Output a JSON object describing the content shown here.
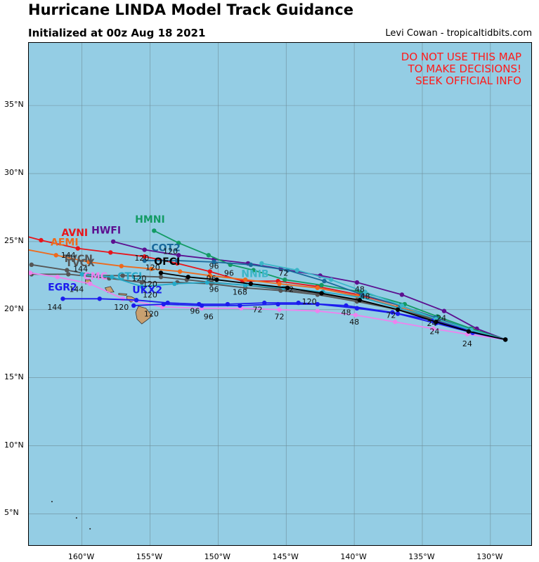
{
  "header": {
    "title": "Hurricane LINDA Model Track Guidance",
    "subtitle": "Initialized at 00z Aug 18 2021",
    "credit": "Levi Cowan - tropicaltidbits.com"
  },
  "warning": [
    "DO NOT USE THIS MAP",
    "TO MAKE DECISIONS!",
    "SEEK OFFICIAL INFO"
  ],
  "colors": {
    "ocean": "#94cde4",
    "land": "#c8a070",
    "grid": "#6f8f9a",
    "warning": "#ff1a1a"
  },
  "axes": {
    "lon_range": [
      -163.9,
      -127.0
    ],
    "lat_range": [
      2.7,
      39.6
    ],
    "x_ticks": [
      {
        "lon": -160,
        "label": "160°W"
      },
      {
        "lon": -155,
        "label": "155°W"
      },
      {
        "lon": -150,
        "label": "150°W"
      },
      {
        "lon": -145,
        "label": "145°W"
      },
      {
        "lon": -140,
        "label": "140°W"
      },
      {
        "lon": -135,
        "label": "135°W"
      },
      {
        "lon": -130,
        "label": "130°W"
      }
    ],
    "y_ticks": [
      {
        "lat": 5,
        "label": "5°N"
      },
      {
        "lat": 10,
        "label": "10°N"
      },
      {
        "lat": 15,
        "label": "15°N"
      },
      {
        "lat": 20,
        "label": "20°N"
      },
      {
        "lat": 25,
        "label": "25°N"
      },
      {
        "lat": 30,
        "label": "30°N"
      },
      {
        "lat": 35,
        "label": "35°N"
      }
    ]
  },
  "chart_data": {
    "type": "line",
    "models": [
      {
        "name": "AVNI",
        "color": "#e8141a",
        "label_at": [
          -161.5,
          25.4
        ],
        "points": [
          [
            -128.9,
            17.8
          ],
          [
            -131.3,
            18.5
          ],
          [
            -134.0,
            19.4
          ],
          [
            -136.6,
            20.3
          ],
          [
            -139.7,
            21.1
          ],
          [
            -142.7,
            21.7
          ],
          [
            -145.6,
            22.1
          ],
          [
            -148.2,
            22.1
          ],
          [
            -150.6,
            22.8
          ],
          [
            -153.0,
            23.4
          ],
          [
            -155.4,
            23.9
          ],
          [
            -157.9,
            24.2
          ],
          [
            -160.3,
            24.5
          ],
          [
            -163.0,
            25.1
          ],
          [
            -164.5,
            25.5
          ]
        ]
      },
      {
        "name": "AEMI",
        "color": "#ee6a1c",
        "label_at": [
          -162.3,
          24.7
        ],
        "points": [
          [
            -128.9,
            17.8
          ],
          [
            -131.4,
            18.5
          ],
          [
            -134.0,
            19.4
          ],
          [
            -136.8,
            20.2
          ],
          [
            -139.8,
            21.0
          ],
          [
            -142.7,
            21.6
          ],
          [
            -145.5,
            21.9
          ],
          [
            -148.0,
            22.2
          ],
          [
            -150.6,
            22.5
          ],
          [
            -152.8,
            22.8
          ],
          [
            -154.9,
            23.0
          ],
          [
            -157.1,
            23.2
          ],
          [
            -159.5,
            23.5
          ],
          [
            -161.9,
            24.0
          ],
          [
            -164.5,
            24.5
          ]
        ]
      },
      {
        "name": "TVCX",
        "color": "#555555",
        "label_at": [
          -161.2,
          23.2
        ],
        "points": [
          [
            -128.9,
            17.8
          ],
          [
            -131.4,
            18.4
          ],
          [
            -134.0,
            19.3
          ],
          [
            -136.8,
            20.0
          ],
          [
            -139.8,
            20.7
          ],
          [
            -142.7,
            21.2
          ],
          [
            -145.4,
            21.5
          ],
          [
            -148.0,
            21.8
          ],
          [
            -150.5,
            22.0
          ],
          [
            -152.3,
            22.2
          ],
          [
            -154.2,
            22.4
          ],
          [
            -157.0,
            22.5
          ],
          [
            -158.9,
            22.5
          ],
          [
            -161.1,
            22.9
          ],
          [
            -163.7,
            23.3
          ]
        ]
      },
      {
        "name": "TVCN",
        "color": "#555555",
        "label_at": [
          -161.4,
          23.5
        ],
        "points": [
          [
            -128.9,
            17.8
          ],
          [
            -131.4,
            18.4
          ],
          [
            -134.0,
            19.2
          ],
          [
            -136.8,
            20.0
          ],
          [
            -139.8,
            20.6
          ],
          [
            -142.7,
            21.1
          ],
          [
            -145.4,
            21.4
          ],
          [
            -148.0,
            21.6
          ],
          [
            -150.5,
            21.9
          ],
          [
            -153.0,
            22.0
          ],
          [
            -155.6,
            22.0
          ],
          [
            -158.0,
            22.3
          ],
          [
            -161.0,
            22.6
          ],
          [
            -163.7,
            22.6
          ]
        ]
      },
      {
        "name": "CMC",
        "color": "#ee82ee",
        "label_at": [
          -159.9,
          22.2
        ],
        "points": [
          [
            -128.9,
            17.8
          ],
          [
            -131.7,
            18.2
          ],
          [
            -134.2,
            18.6
          ],
          [
            -137.0,
            19.1
          ],
          [
            -139.9,
            19.6
          ],
          [
            -142.7,
            19.9
          ],
          [
            -145.5,
            20.0
          ],
          [
            -148.3,
            20.1
          ],
          [
            -151.2,
            20.1
          ],
          [
            -154.1,
            20.2
          ],
          [
            -157.0,
            20.8
          ],
          [
            -159.4,
            21.9
          ],
          [
            -161.8,
            22.4
          ],
          [
            -163.8,
            22.7
          ]
        ]
      },
      {
        "name": "CTCI",
        "color": "#25a9c8",
        "label_at": [
          -157.4,
          22.2
        ],
        "points": [
          [
            -128.9,
            17.8
          ],
          [
            -131.5,
            18.6
          ],
          [
            -134.1,
            19.4
          ],
          [
            -136.7,
            20.1
          ],
          [
            -139.5,
            20.9
          ],
          [
            -142.3,
            21.3
          ],
          [
            -145.2,
            21.6
          ],
          [
            -148.0,
            21.8
          ],
          [
            -150.8,
            22.0
          ],
          [
            -153.2,
            21.9
          ],
          [
            -155.6,
            21.7
          ],
          [
            -157.8,
            22.4
          ],
          [
            -160.0,
            22.6
          ]
        ]
      },
      {
        "name": "EGR2",
        "color": "#1c1cee",
        "label_at": [
          -162.5,
          21.4
        ],
        "points": [
          [
            -128.9,
            17.8
          ],
          [
            -131.3,
            18.4
          ],
          [
            -134.2,
            19.2
          ],
          [
            -137.2,
            19.8
          ],
          [
            -140.6,
            20.3
          ],
          [
            -144.1,
            20.5
          ],
          [
            -146.6,
            20.5
          ],
          [
            -149.3,
            20.4
          ],
          [
            -151.4,
            20.4
          ],
          [
            -153.7,
            20.5
          ],
          [
            -156.0,
            20.7
          ],
          [
            -158.7,
            20.8
          ],
          [
            -161.4,
            20.8
          ]
        ]
      },
      {
        "name": "UKX2",
        "color": "#1c1cee",
        "label_at": [
          -156.3,
          21.2
        ],
        "points": [
          [
            -128.9,
            17.8
          ],
          [
            -131.3,
            18.3
          ],
          [
            -134.0,
            19.0
          ],
          [
            -136.8,
            19.7
          ],
          [
            -139.8,
            20.1
          ],
          [
            -142.7,
            20.4
          ],
          [
            -145.6,
            20.4
          ],
          [
            -148.4,
            20.3
          ],
          [
            -151.2,
            20.3
          ],
          [
            -154.0,
            20.4
          ],
          [
            -156.2,
            20.3
          ]
        ]
      },
      {
        "name": "HWFI",
        "color": "#5c1090",
        "label_at": [
          -159.3,
          25.6
        ],
        "points": [
          [
            -128.9,
            17.8
          ],
          [
            -131.0,
            18.6
          ],
          [
            -133.4,
            19.9
          ],
          [
            -136.5,
            21.1
          ],
          [
            -139.8,
            22.0
          ],
          [
            -142.5,
            22.5
          ],
          [
            -145.4,
            23.0
          ],
          [
            -147.8,
            23.4
          ],
          [
            -150.3,
            23.7
          ],
          [
            -152.9,
            24.0
          ],
          [
            -155.4,
            24.4
          ],
          [
            -157.7,
            25.0
          ]
        ]
      },
      {
        "name": "HMNI",
        "color": "#139b64",
        "label_at": [
          -156.1,
          26.4
        ],
        "points": [
          [
            -128.9,
            17.8
          ],
          [
            -131.4,
            18.6
          ],
          [
            -133.9,
            19.5
          ],
          [
            -136.3,
            20.4
          ],
          [
            -139.5,
            21.3
          ],
          [
            -142.4,
            21.8
          ],
          [
            -145.1,
            22.2
          ],
          [
            -147.4,
            22.9
          ],
          [
            -149.1,
            23.3
          ],
          [
            -150.7,
            24.0
          ],
          [
            -152.9,
            24.9
          ],
          [
            -154.7,
            25.8
          ]
        ]
      },
      {
        "name": "COT2",
        "color": "#1a6a9c",
        "label_at": [
          -154.9,
          24.3
        ],
        "points": [
          [
            -128.9,
            17.8
          ],
          [
            -131.5,
            18.5
          ],
          [
            -134.0,
            19.4
          ],
          [
            -136.6,
            20.3
          ],
          [
            -139.4,
            21.1
          ],
          [
            -142.2,
            22.1
          ],
          [
            -144.9,
            22.9
          ],
          [
            -147.6,
            23.3
          ],
          [
            -150.3,
            23.5
          ],
          [
            -153.0,
            23.6
          ],
          [
            -155.4,
            23.6
          ]
        ]
      },
      {
        "name": "NNIB",
        "color": "#3cb6c8",
        "label_at": [
          -148.3,
          22.4
        ],
        "points": [
          [
            -128.9,
            17.8
          ],
          [
            -131.4,
            18.5
          ],
          [
            -134.0,
            19.3
          ],
          [
            -136.5,
            20.3
          ],
          [
            -139.2,
            21.3
          ],
          [
            -141.7,
            22.2
          ],
          [
            -144.2,
            22.9
          ],
          [
            -146.8,
            23.4
          ]
        ]
      },
      {
        "name": "OFCI",
        "color": "#000000",
        "label_at": [
          -154.7,
          23.3
        ],
        "points": [
          [
            -128.9,
            17.8
          ],
          [
            -131.6,
            18.4
          ],
          [
            -134.0,
            19.1
          ],
          [
            -136.8,
            20.0
          ],
          [
            -139.6,
            20.7
          ],
          [
            -142.4,
            21.2
          ],
          [
            -144.9,
            21.6
          ],
          [
            -147.6,
            21.9
          ],
          [
            -150.1,
            22.2
          ],
          [
            -152.2,
            22.4
          ],
          [
            -154.2,
            22.7
          ]
        ]
      }
    ],
    "hour_labels": [
      {
        "text": "24",
        "lon": -133.6,
        "lat": 19.2
      },
      {
        "text": "24",
        "lon": -134.3,
        "lat": 18.8
      },
      {
        "text": "24",
        "lon": -134.1,
        "lat": 18.2
      },
      {
        "text": "24",
        "lon": -131.7,
        "lat": 17.3
      },
      {
        "text": "48",
        "lon": -139.6,
        "lat": 21.3
      },
      {
        "text": "48",
        "lon": -139.2,
        "lat": 20.8
      },
      {
        "text": "48",
        "lon": -140.6,
        "lat": 19.6
      },
      {
        "text": "48",
        "lon": -140.0,
        "lat": 18.9
      },
      {
        "text": "72",
        "lon": -145.2,
        "lat": 22.5
      },
      {
        "text": "72",
        "lon": -144.8,
        "lat": 21.3
      },
      {
        "text": "72",
        "lon": -147.1,
        "lat": 19.8
      },
      {
        "text": "72",
        "lon": -145.5,
        "lat": 19.3
      },
      {
        "text": "72",
        "lon": -137.3,
        "lat": 19.4
      },
      {
        "text": "96",
        "lon": -150.3,
        "lat": 23.0
      },
      {
        "text": "96",
        "lon": -149.2,
        "lat": 22.5
      },
      {
        "text": "96",
        "lon": -150.5,
        "lat": 22.1
      },
      {
        "text": "96",
        "lon": -150.3,
        "lat": 21.3
      },
      {
        "text": "96",
        "lon": -151.7,
        "lat": 19.7
      },
      {
        "text": "96",
        "lon": -150.7,
        "lat": 19.3
      },
      {
        "text": "120",
        "lon": -153.5,
        "lat": 24.1
      },
      {
        "text": "120",
        "lon": -155.6,
        "lat": 23.6
      },
      {
        "text": "120",
        "lon": -154.8,
        "lat": 22.9
      },
      {
        "text": "120",
        "lon": -155.8,
        "lat": 22.1
      },
      {
        "text": "120",
        "lon": -155.0,
        "lat": 21.7
      },
      {
        "text": "120",
        "lon": -155.0,
        "lat": 20.9
      },
      {
        "text": "120",
        "lon": -157.1,
        "lat": 20.0
      },
      {
        "text": "120",
        "lon": -154.9,
        "lat": 19.5
      },
      {
        "text": "120",
        "lon": -143.3,
        "lat": 20.4
      },
      {
        "text": "144",
        "lon": -161.0,
        "lat": 23.8
      },
      {
        "text": "144",
        "lon": -160.1,
        "lat": 22.8
      },
      {
        "text": "144",
        "lon": -160.4,
        "lat": 21.3
      },
      {
        "text": "144",
        "lon": -162.0,
        "lat": 20.0
      },
      {
        "text": "168",
        "lon": -148.4,
        "lat": 21.1
      }
    ],
    "islands": [
      {
        "name": "hawaii",
        "points": [
          [
            -155.85,
            20.25
          ],
          [
            -155.3,
            20.1
          ],
          [
            -154.85,
            19.55
          ],
          [
            -155.2,
            19.25
          ],
          [
            -155.6,
            18.95
          ],
          [
            -155.95,
            19.3
          ],
          [
            -156.05,
            19.8
          ]
        ]
      },
      {
        "name": "maui",
        "points": [
          [
            -156.7,
            21.0
          ],
          [
            -156.35,
            20.95
          ],
          [
            -156.0,
            20.75
          ],
          [
            -156.4,
            20.55
          ],
          [
            -156.7,
            20.8
          ]
        ]
      },
      {
        "name": "oahu",
        "points": [
          [
            -158.3,
            21.6
          ],
          [
            -157.9,
            21.7
          ],
          [
            -157.65,
            21.3
          ],
          [
            -158.1,
            21.25
          ]
        ]
      },
      {
        "name": "kauai",
        "points": [
          [
            -159.75,
            22.2
          ],
          [
            -159.4,
            22.2
          ],
          [
            -159.3,
            21.95
          ],
          [
            -159.75,
            21.9
          ]
        ]
      },
      {
        "name": "molokai",
        "points": [
          [
            -157.3,
            21.2
          ],
          [
            -156.7,
            21.15
          ],
          [
            -156.75,
            21.05
          ],
          [
            -157.3,
            21.1
          ]
        ]
      }
    ]
  }
}
